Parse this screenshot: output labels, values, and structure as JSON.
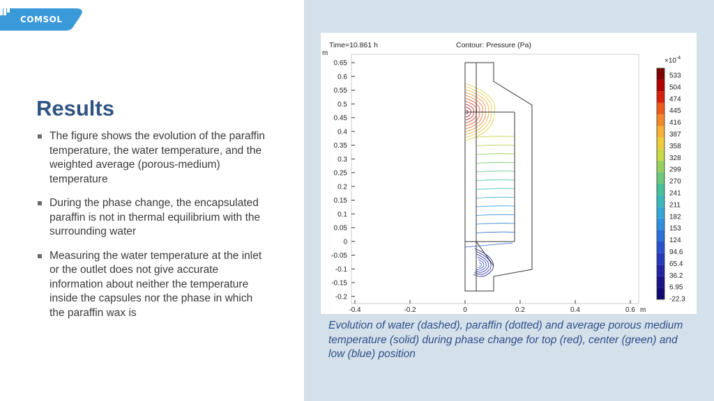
{
  "logo": {
    "text": "COMSOL",
    "color": "#3a9ad9"
  },
  "slide": {
    "title": "Results",
    "bullets": [
      "The figure shows the evolution of the paraffin temperature, the water temperature, and the weighted average (porous-medium) temperature",
      "During the phase change, the encapsulated paraffin is not in thermal equilibrium with the surrounding water",
      "Measuring the water temperature at the inlet or the outlet does not give accurate information about neither the temperature inside the capsules nor the phase in which the paraffin wax is"
    ]
  },
  "figure": {
    "time_label": "Time=10.861 h",
    "contour_label": "Contour: Pressure (Pa)",
    "y_unit": "m",
    "x_unit": "m",
    "y_ticks": [
      "0.65",
      "0.6",
      "0.55",
      "0.5",
      "0.45",
      "0.4",
      "0.35",
      "0.3",
      "0.25",
      "0.2",
      "0.15",
      "0.1",
      "0.05",
      "0",
      "-0.05",
      "-0.1",
      "-0.15",
      "-0.2"
    ],
    "x_ticks": [
      "-0.4",
      "-0.2",
      "0",
      "0.2",
      "0.4",
      "0.6"
    ],
    "colorbar_exponent": "×10",
    "colorbar_exponent_power": "-4",
    "colorbar_labels": [
      "533",
      "504",
      "474",
      "445",
      "416",
      "387",
      "358",
      "328",
      "299",
      "270",
      "241",
      "211",
      "182",
      "153",
      "124",
      "94.6",
      "65.4",
      "36.2",
      "6.95",
      "-22.3"
    ]
  },
  "caption": "Evolution of water (dashed), paraffin (dotted) and average porous medium temperature (solid) during phase change for top (red), center (green) and low (blue) position"
}
